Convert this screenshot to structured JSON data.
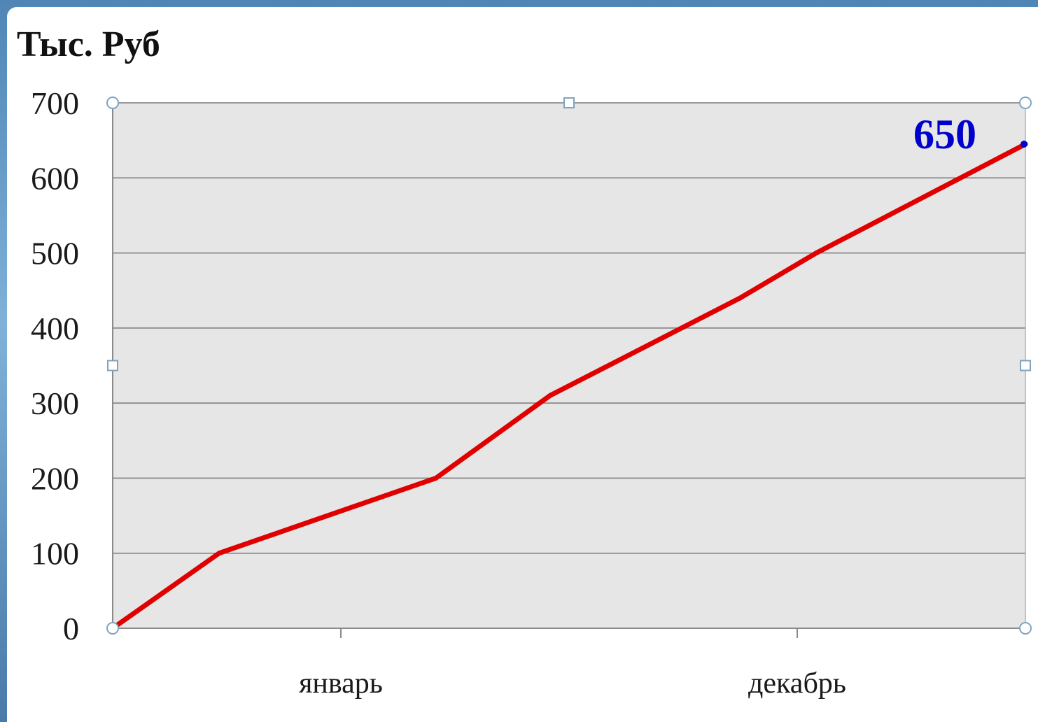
{
  "chart_data": {
    "type": "line",
    "title": "Тыс. Руб",
    "xlabel": "",
    "ylabel": "",
    "x_tick_labels": [
      "январь",
      "декабрь"
    ],
    "y_ticks": [
      0,
      100,
      200,
      300,
      400,
      500,
      600,
      700
    ],
    "ylim": [
      0,
      700
    ],
    "grid": true,
    "plot_background": "#e6e6e6",
    "series": [
      {
        "color": "#e00000",
        "x": [
          0,
          1.4,
          4.25,
          5.75,
          8.25,
          9.25,
          12
        ],
        "values": [
          0,
          100,
          200,
          310,
          440,
          500,
          645
        ]
      }
    ],
    "data_labels": [
      {
        "text": "650",
        "color": "#0000cc"
      }
    ]
  }
}
